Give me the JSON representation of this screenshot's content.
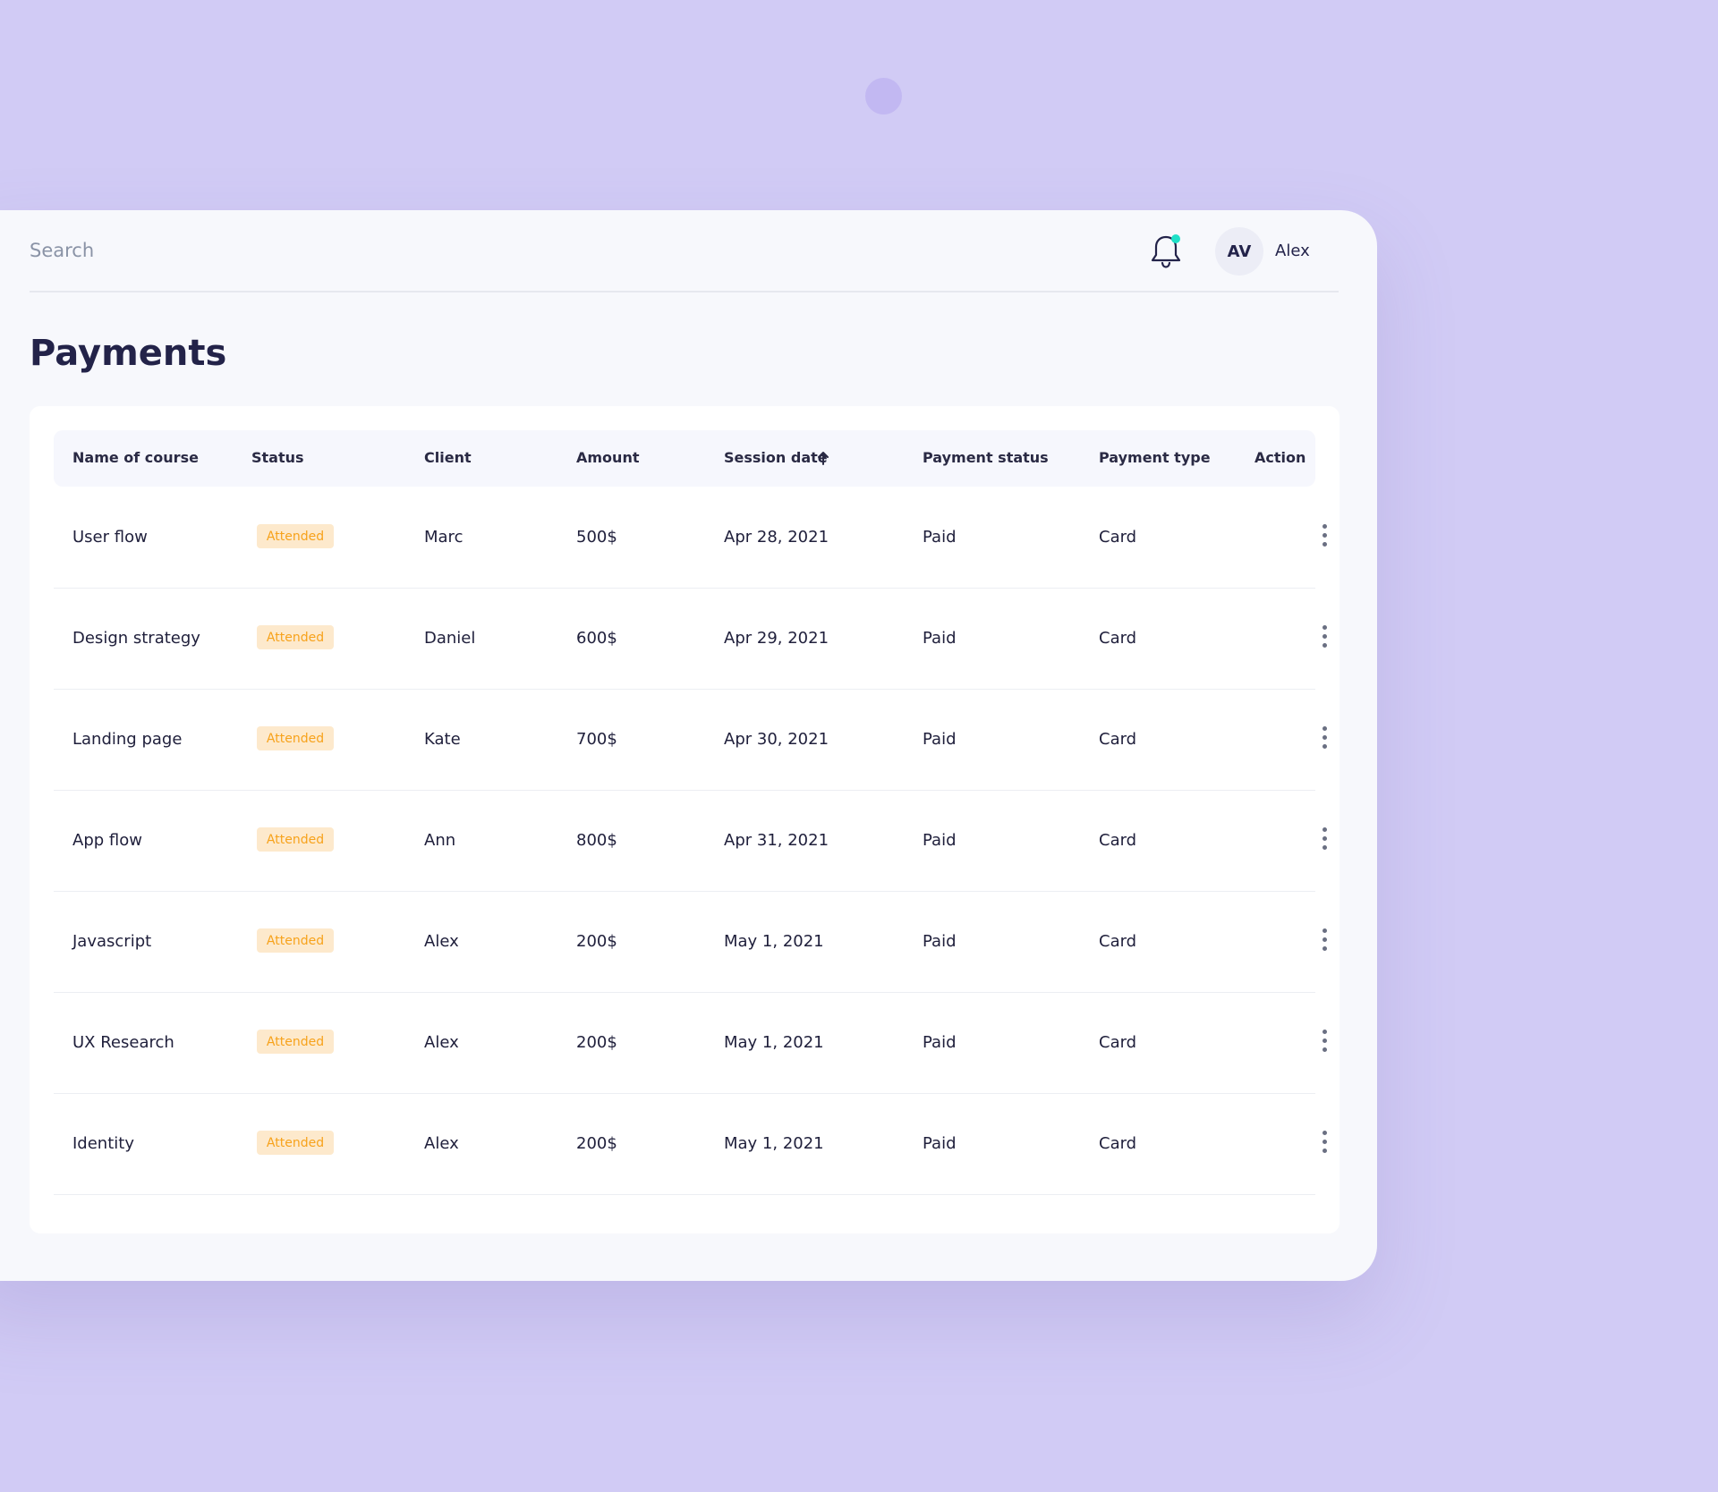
{
  "header": {
    "search_placeholder": "Search",
    "avatar_initials": "AV",
    "user_name": "Alex",
    "notification_dot_color": "#1ee0c7"
  },
  "page": {
    "title": "Payments"
  },
  "table": {
    "columns": [
      "Name of course",
      "Status",
      "Client",
      "Amount",
      "Session date",
      "Payment status",
      "Payment type",
      "Action"
    ],
    "sort_column": "Session date",
    "sort_direction": "ascending",
    "rows": [
      {
        "course": "User flow",
        "status": "Attended",
        "client": "Marc",
        "amount": "500$",
        "date": "Apr 28, 2021",
        "payment_status": "Paid",
        "payment_type": "Card"
      },
      {
        "course": "Design strategy",
        "status": "Attended",
        "client": "Daniel",
        "amount": "600$",
        "date": "Apr 29, 2021",
        "payment_status": "Paid",
        "payment_type": "Card"
      },
      {
        "course": "Landing page",
        "status": "Attended",
        "client": "Kate",
        "amount": "700$",
        "date": "Apr 30, 2021",
        "payment_status": "Paid",
        "payment_type": "Card"
      },
      {
        "course": "App flow",
        "status": "Attended",
        "client": "Ann",
        "amount": "800$",
        "date": "Apr 31, 2021",
        "payment_status": "Paid",
        "payment_type": "Card"
      },
      {
        "course": "Javascript",
        "status": "Attended",
        "client": "Alex",
        "amount": "200$",
        "date": "May 1, 2021",
        "payment_status": "Paid",
        "payment_type": "Card"
      },
      {
        "course": "UX Research",
        "status": "Attended",
        "client": "Alex",
        "amount": "200$",
        "date": "May 1, 2021",
        "payment_status": "Paid",
        "payment_type": "Card"
      },
      {
        "course": "Identity",
        "status": "Attended",
        "client": "Alex",
        "amount": "200$",
        "date": "May 1, 2021",
        "payment_status": "Paid",
        "payment_type": "Card"
      }
    ]
  },
  "colors": {
    "background": "#d1cbf5",
    "panel": "#f7f8fc",
    "title": "#232349",
    "badge_bg": "#fde9cc",
    "badge_text": "#f7a21b"
  }
}
